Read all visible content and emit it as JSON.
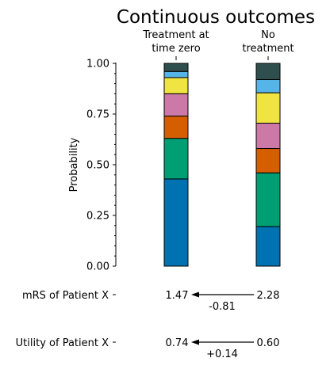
{
  "chart_data": {
    "type": "bar",
    "stacked": true,
    "title": "Continuous outcomes",
    "xlabel": "",
    "ylabel": "Probability",
    "ylim": [
      0,
      1
    ],
    "yticks": [
      "0.00",
      "0.25",
      "0.50",
      "0.75",
      "1.00"
    ],
    "categories": [
      {
        "line1": "Treatment at",
        "line2": "time zero"
      },
      {
        "line1": "No",
        "line2": "treatment"
      }
    ],
    "segment_colors": [
      "#0072b2",
      "#009e73",
      "#d55e00",
      "#cc79a7",
      "#f0e442",
      "#56b4e9",
      "#2f4f4f"
    ],
    "bars": [
      {
        "values": [
          0.43,
          0.2,
          0.11,
          0.11,
          0.08,
          0.03,
          0.04
        ]
      },
      {
        "values": [
          0.195,
          0.265,
          0.12,
          0.125,
          0.15,
          0.065,
          0.08
        ]
      }
    ],
    "rows": [
      {
        "label": "mRS of Patient X",
        "left_value": "1.47",
        "right_value": "2.28",
        "change": "-0.81"
      },
      {
        "label": "Utility of Patient X",
        "left_value": "0.74",
        "right_value": "0.60",
        "change": "+0.14"
      }
    ],
    "legend": "none",
    "grid": false
  }
}
